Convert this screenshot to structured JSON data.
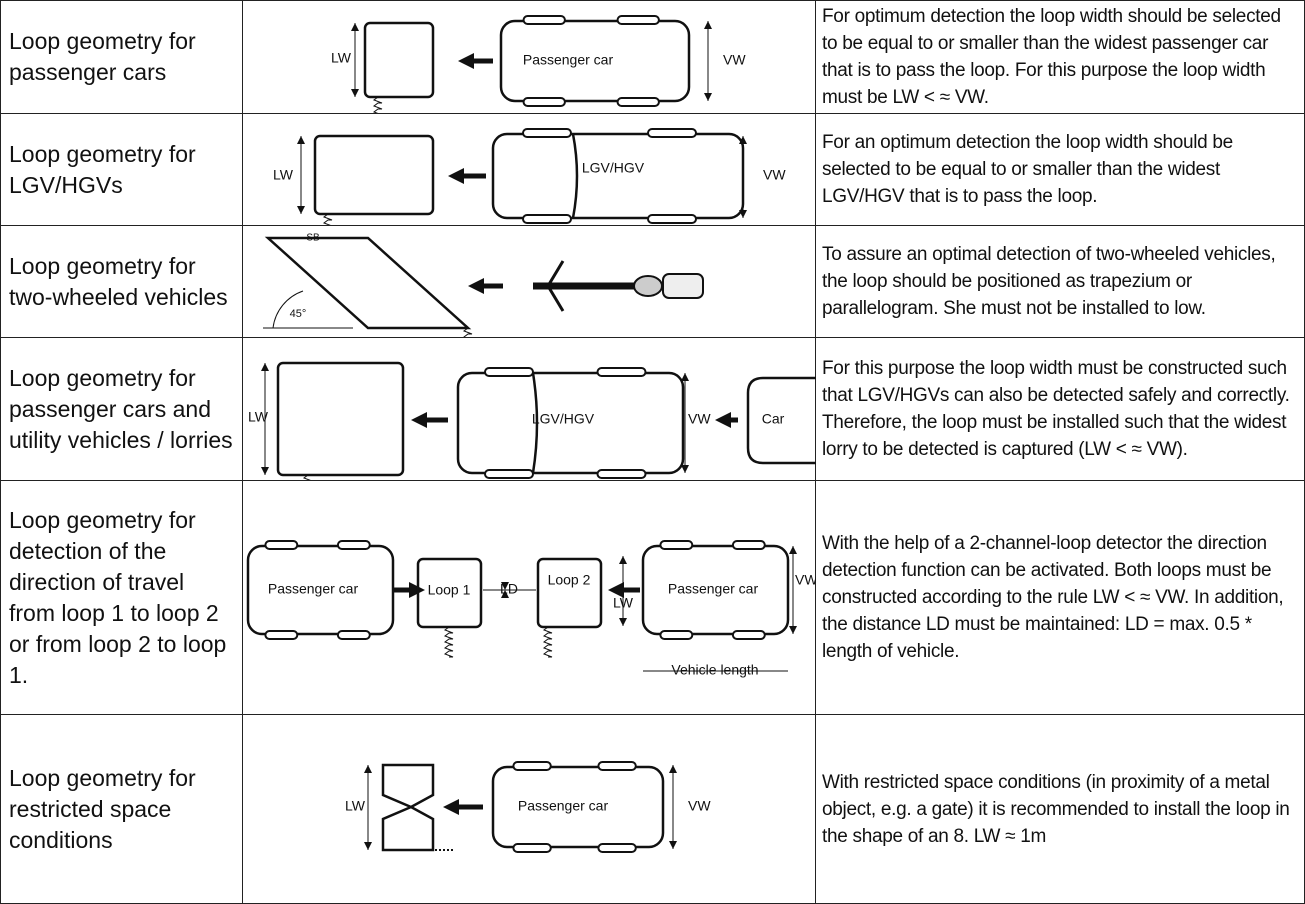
{
  "table": {
    "rows": [
      {
        "title": "Loop geometry for passenger cars",
        "labels": [
          "LW",
          "Passenger car",
          "VW"
        ],
        "text": "For optimum detection the loop width should be selected to be equal to or smaller than the widest passenger car that is to pass the loop. For this purpose the loop width must be LW < ≈  VW."
      },
      {
        "title": "Loop geometry for LGV/HGVs",
        "labels": [
          "LW",
          "LGV/HGV",
          "VW"
        ],
        "text": "For an optimum detection the loop width should be selected to be equal to or smaller than the widest LGV/HGV that is to pass the loop."
      },
      {
        "title": "Loop geometry for two-wheeled vehicles",
        "labels": [
          "SB",
          "45°"
        ],
        "text": "To assure an optimal detection of two-wheeled vehicles, the loop should be positioned as trapezium or parallelogram. She  must not be installed to low."
      },
      {
        "title": "Loop geometry for passenger cars and utility vehicles / lorries",
        "labels": [
          "LW",
          "LGV/HGV",
          "VW",
          "Car"
        ],
        "text": "For this purpose the loop width must be constructed such that LGV/HGVs can also be detected safely and correctly. Therefore, the loop must be installed such that the widest lorry to be detected is captured (LW < ≈ VW)."
      },
      {
        "title": "Loop geometry for detection of the direction of travel from loop 1 to loop 2 or from loop 2 to loop 1.",
        "labels": [
          "Passenger car",
          "Loop 1",
          "LD",
          "Loop 2",
          "LW",
          "Passenger car",
          "VW",
          "Vehicle length"
        ],
        "text": "With the help of a 2-channel-loop detector the direction detection function can be activated. Both loops must be constructed according to the rule LW < ≈ VW. In addition, the distance LD must be maintained: LD = max. 0.5 * length of vehicle."
      },
      {
        "title": "Loop geometry for restricted space conditions",
        "labels": [
          "LW",
          "Passenger car",
          "VW"
        ],
        "text": "With restricted space conditions (in proximity of a metal object, e.g. a gate) it is recommended to install the loop in the shape of an 8. LW ≈ 1m"
      }
    ]
  }
}
